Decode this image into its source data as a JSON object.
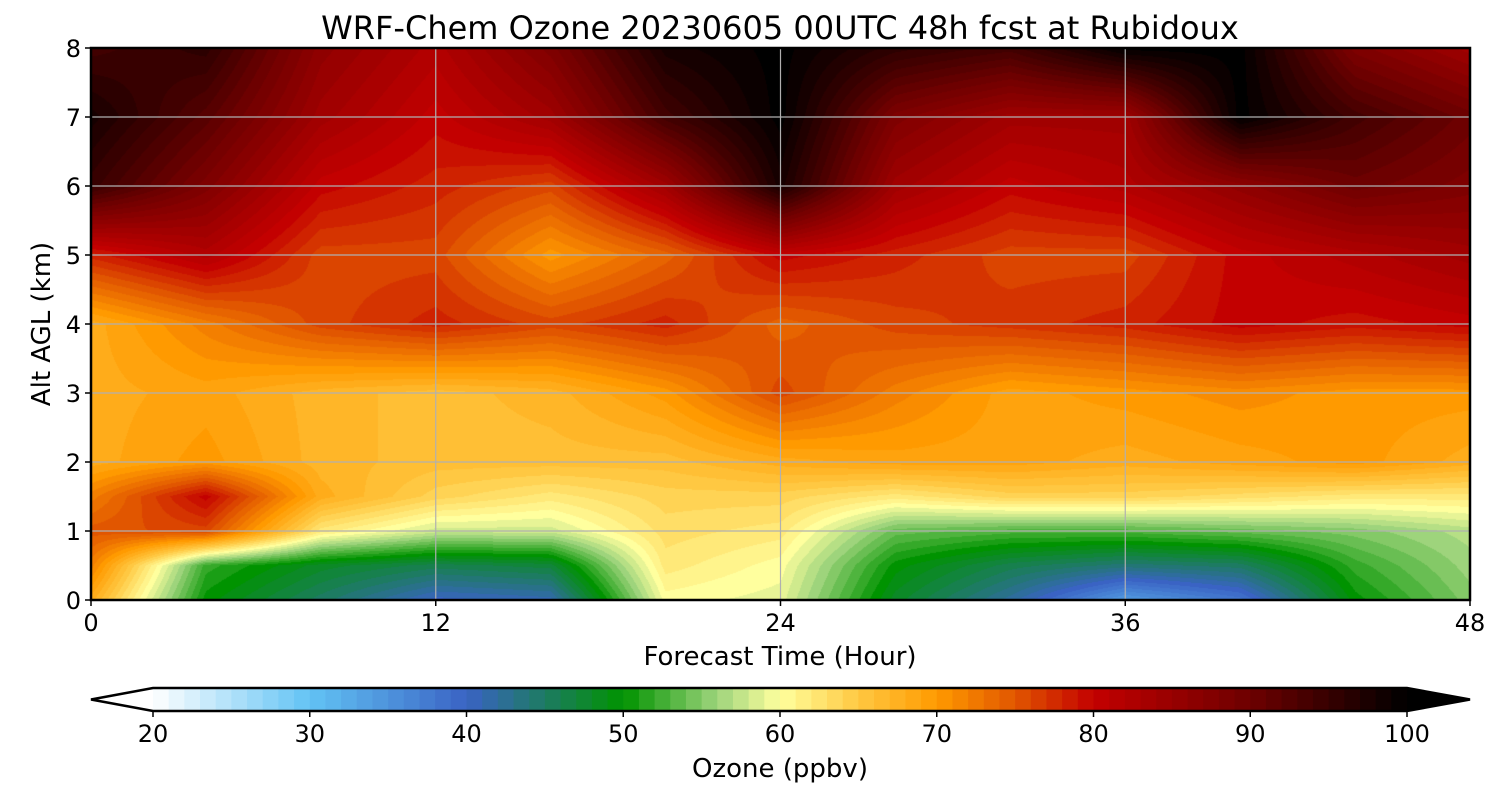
{
  "chart_data": {
    "type": "heatmap",
    "title": "WRF-Chem Ozone  20230605 00UTC 48h fcst at Rubidoux",
    "xlabel": "Forecast Time (Hour)",
    "ylabel": "Alt AGL (km)",
    "xlim": [
      0,
      48
    ],
    "ylim": [
      0,
      8
    ],
    "x_ticks": [
      "0",
      "12",
      "24",
      "36",
      "48"
    ],
    "y_ticks": [
      "0",
      "1",
      "2",
      "3",
      "4",
      "5",
      "6",
      "7",
      "8"
    ],
    "grid": true,
    "z_unit": "ppbv",
    "x_hours": [
      0,
      4,
      8,
      12,
      16,
      20,
      24,
      28,
      32,
      36,
      40,
      44,
      48
    ],
    "y_km": [
      0,
      0.5,
      1,
      1.5,
      2,
      3,
      4,
      5,
      6,
      7,
      8
    ],
    "z_ppbv": [
      [
        68,
        50,
        45,
        40,
        41,
        60,
        59,
        48,
        42,
        34,
        38,
        50,
        55
      ],
      [
        72,
        52,
        48,
        46,
        47,
        62,
        60,
        50,
        46,
        44,
        45,
        52,
        56
      ],
      [
        75,
        76,
        62,
        58,
        58,
        63,
        62,
        54,
        53,
        53,
        54,
        55,
        57
      ],
      [
        72,
        80,
        68,
        64,
        62,
        64,
        64,
        62,
        64,
        64,
        63,
        62,
        62
      ],
      [
        68,
        70,
        67,
        66,
        66,
        66,
        68,
        69,
        69,
        68,
        69,
        70,
        68
      ],
      [
        68,
        69,
        67,
        66,
        67,
        70,
        76,
        72,
        69,
        70,
        71,
        70,
        70
      ],
      [
        68,
        72,
        76,
        78,
        76,
        78,
        74,
        76,
        77,
        78,
        80,
        79,
        80
      ],
      [
        78,
        82,
        76,
        76,
        70,
        74,
        80,
        78,
        76,
        76,
        80,
        82,
        84
      ],
      [
        95,
        88,
        80,
        78,
        76,
        84,
        98,
        84,
        80,
        82,
        86,
        90,
        88
      ],
      [
        98,
        92,
        84,
        80,
        84,
        94,
        100,
        88,
        84,
        84,
        100,
        94,
        90
      ],
      [
        94,
        96,
        86,
        82,
        88,
        98,
        100,
        96,
        94,
        100,
        100,
        88,
        84
      ]
    ],
    "colorbar": {
      "label": "Ozone  (ppbv)",
      "min": 20,
      "max": 100,
      "ticks": [
        "20",
        "30",
        "40",
        "50",
        "60",
        "70",
        "80",
        "90",
        "100"
      ],
      "extend": "both",
      "color_stops": [
        [
          20,
          "#ffffff"
        ],
        [
          30,
          "#62c3f4"
        ],
        [
          40,
          "#3a63c4"
        ],
        [
          50,
          "#009300"
        ],
        [
          56,
          "#9ed47c"
        ],
        [
          60,
          "#ffff9e"
        ],
        [
          65,
          "#ffc842"
        ],
        [
          70,
          "#ff9a00"
        ],
        [
          75,
          "#e15600"
        ],
        [
          80,
          "#c30000"
        ],
        [
          90,
          "#6d0000"
        ],
        [
          100,
          "#000000"
        ]
      ]
    }
  }
}
